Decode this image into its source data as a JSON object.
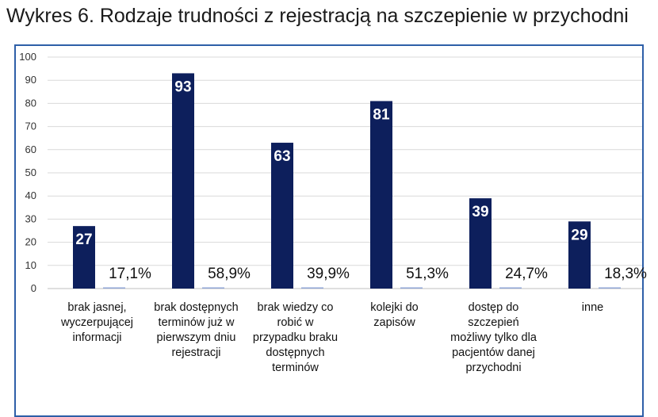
{
  "title": "Wykres 6. Rodzaje trudności z rejestracją na szczepienie w przychodni",
  "chart_data": {
    "type": "bar",
    "title": "Wykres 6. Rodzaje trudności z rejestracją na szczepienie w przychodni",
    "xlabel": "",
    "ylabel": "",
    "ylim": [
      0,
      100
    ],
    "yticks": [
      "0",
      "10",
      "20",
      "30",
      "40",
      "50",
      "60",
      "70",
      "80",
      "90",
      "100"
    ],
    "grid": true,
    "colors": {
      "bar": "#0d1f5c",
      "frame": "#2e5fa8",
      "grid": "#d9d9d9"
    },
    "categories": [
      [
        "brak jasnej,",
        "wyczerpującej",
        "informacji"
      ],
      [
        "brak dostępnych",
        "terminów już w",
        "pierwszym dniu",
        "rejestracji"
      ],
      [
        "brak wiedzy co",
        "robić w",
        "przypadku braku",
        "dostępnych",
        "terminów"
      ],
      [
        "kolejki do",
        "zapisów"
      ],
      [
        "dostęp do",
        "szczepień",
        "możliwy tylko dla",
        "pacjentów danej",
        "przychodni"
      ],
      [
        "inne"
      ]
    ],
    "values": [
      27,
      93,
      63,
      81,
      39,
      29
    ],
    "value_labels": [
      "27",
      "93",
      "63",
      "81",
      "39",
      "29"
    ],
    "percent_labels": [
      "17,1%",
      "58,9%",
      "39,9%",
      "51,3%",
      "24,7%",
      "18,3%"
    ]
  }
}
